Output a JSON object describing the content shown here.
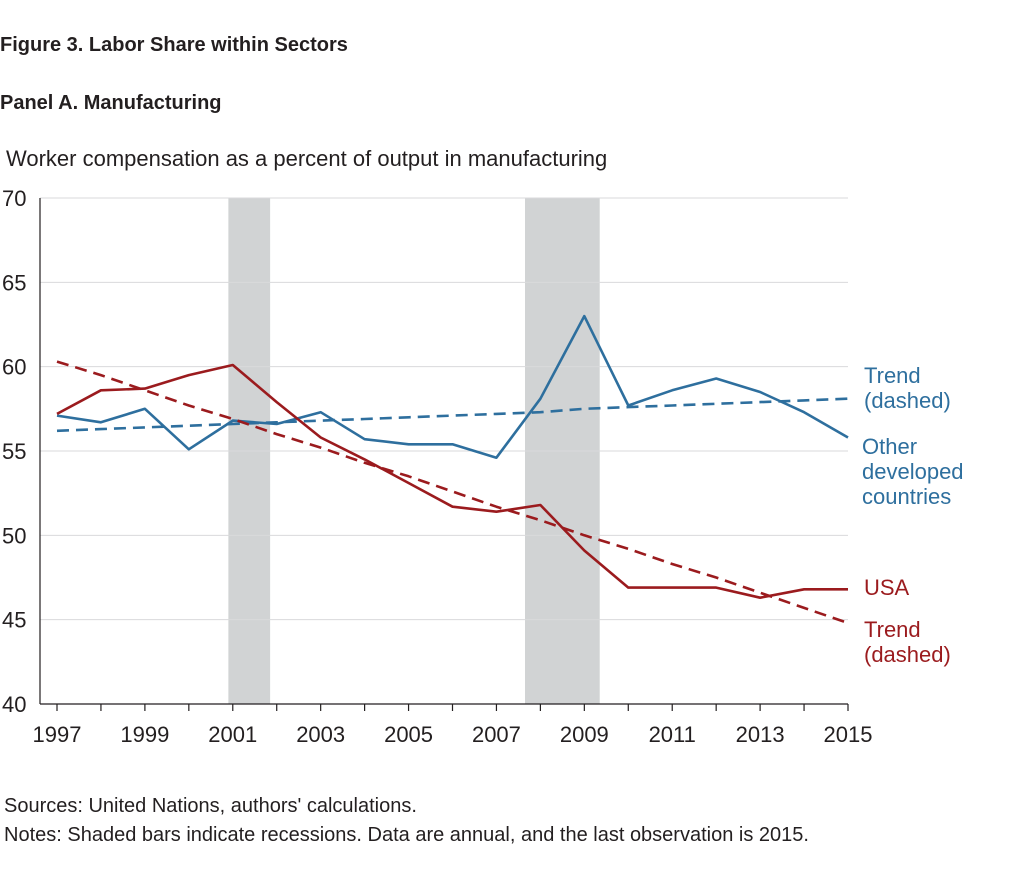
{
  "figure_title": "Figure 3. Labor Share within Sectors",
  "panel_title": "Panel A. Manufacturing",
  "sources": "Sources: United Nations, authors' calculations.",
  "notes": "Notes: Shaded bars indicate recessions. Data are annual, and the last observation is 2015.",
  "chart_data": {
    "type": "line",
    "title": "Worker compensation as a percent of output in manufacturing",
    "xlim": [
      1997,
      2015
    ],
    "ylim": [
      40,
      70
    ],
    "x_ticks": [
      1997,
      1999,
      2001,
      2003,
      2005,
      2007,
      2009,
      2011,
      2013,
      2015
    ],
    "y_ticks": [
      40,
      45,
      50,
      55,
      60,
      65,
      70
    ],
    "grid": "horizontal",
    "recessions": [
      [
        2000.9,
        2001.85
      ],
      [
        2007.65,
        2009.35
      ]
    ],
    "x": [
      1997,
      1998,
      1999,
      2000,
      2001,
      2002,
      2003,
      2004,
      2005,
      2006,
      2007,
      2008,
      2009,
      2010,
      2011,
      2012,
      2013,
      2014,
      2015
    ],
    "series": [
      {
        "name": "Other developed countries",
        "color": "#2e6f9e",
        "style": "solid",
        "values": [
          57.1,
          56.7,
          57.5,
          55.1,
          56.8,
          56.6,
          57.3,
          55.7,
          55.4,
          55.4,
          54.6,
          58.1,
          63.0,
          57.7,
          58.6,
          59.3,
          58.5,
          57.3,
          55.8
        ]
      },
      {
        "name": "USA",
        "color": "#9b1b1e",
        "style": "solid",
        "values": [
          57.2,
          58.6,
          58.7,
          59.5,
          60.1,
          57.9,
          55.8,
          54.5,
          53.1,
          51.7,
          51.4,
          51.8,
          49.1,
          46.9,
          46.9,
          46.9,
          46.3,
          46.8,
          46.8
        ]
      },
      {
        "name": "Trend (dashed)",
        "color": "#2e6f9e",
        "style": "dashed",
        "values": [
          56.2,
          56.3,
          56.4,
          56.5,
          56.6,
          56.7,
          56.8,
          56.9,
          57.0,
          57.1,
          57.2,
          57.3,
          57.5,
          57.6,
          57.7,
          57.8,
          57.9,
          58.0,
          58.1
        ]
      },
      {
        "name": "Trend (dashed)",
        "color": "#9b1b1e",
        "style": "dashed",
        "values": [
          60.3,
          59.5,
          58.6,
          57.7,
          56.9,
          56.0,
          55.2,
          54.3,
          53.5,
          52.6,
          51.7,
          50.9,
          50.0,
          49.2,
          48.3,
          47.5,
          46.6,
          45.7,
          44.8
        ]
      }
    ],
    "labels": {
      "blue_trend": "Trend\n(dashed)",
      "blue_series": "Other\ndeveloped\ncountries",
      "red_series": "USA",
      "red_trend": "Trend\n(dashed)"
    }
  }
}
